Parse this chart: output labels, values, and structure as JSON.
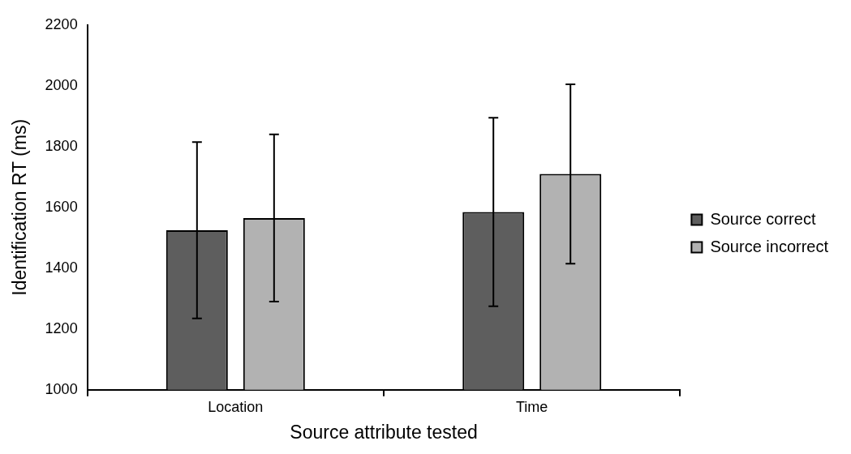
{
  "chart_data": {
    "type": "bar",
    "xlabel": "Source attribute tested",
    "ylabel": "Identification RT (ms)",
    "categories": [
      "Location",
      "Time"
    ],
    "series": [
      {
        "name": "Source correct",
        "color": "#5e5e5e",
        "values": [
          1525,
          1585
        ],
        "errors": [
          290,
          310
        ]
      },
      {
        "name": "Source incorrect",
        "color": "#b2b2b2",
        "values": [
          1565,
          1710
        ],
        "errors": [
          275,
          295
        ]
      }
    ],
    "ylim": [
      1000,
      2200
    ],
    "yticks": [
      1000,
      1200,
      1400,
      1600,
      1800,
      2000,
      2200
    ],
    "grid": false,
    "legend": "right"
  }
}
